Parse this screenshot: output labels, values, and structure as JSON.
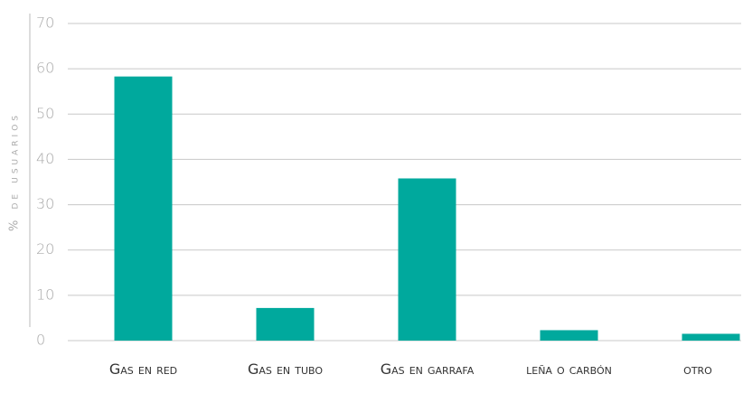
{
  "chart_data": {
    "type": "bar",
    "y_label": "% de usuarios",
    "categories": [
      "Gas en red",
      "Gas en tubo",
      "Gas en garrafa",
      "leña o carbón",
      "otro"
    ],
    "values": [
      58.3,
      7.2,
      35.8,
      2.3,
      1.5
    ],
    "color": "#00a99d",
    "ylim": [
      0,
      70
    ],
    "yticks": [
      0,
      10,
      20,
      30,
      40,
      50,
      60,
      70
    ],
    "grid": true
  }
}
